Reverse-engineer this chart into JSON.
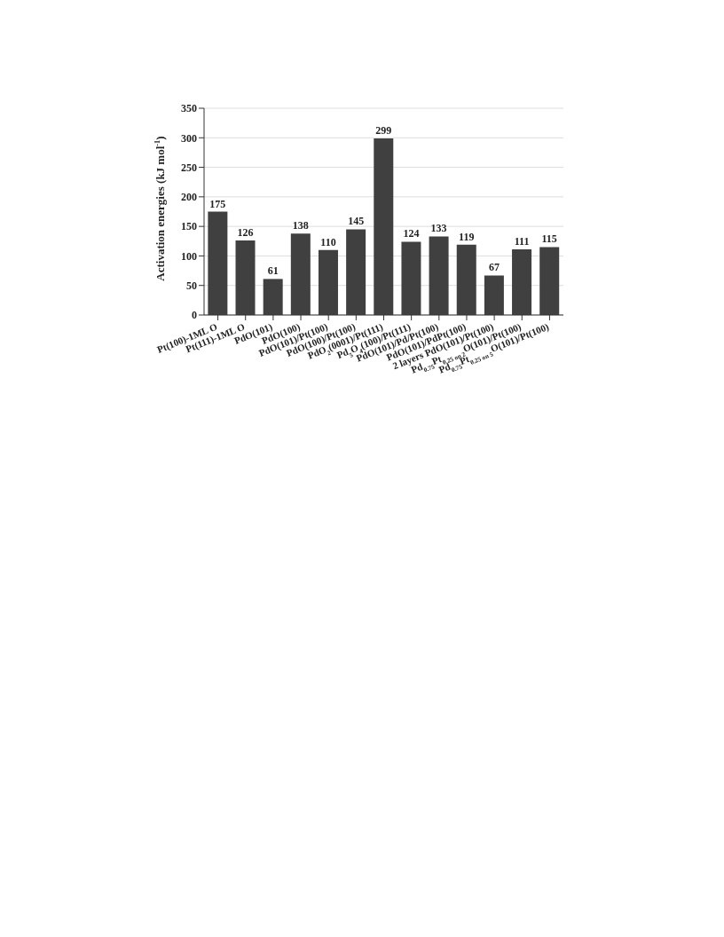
{
  "chart_data": {
    "type": "bar",
    "ylabel": "Activation energies (kJ mol$^{-1}$)",
    "categories": [
      "Pt(100)-1ML O",
      "Pt(111)-1ML O",
      "PdO(101)",
      "PdO(100)",
      "PdO(101)/Pt(100)",
      "PdO(100)/Pt(100)",
      "PdO$_{2}$(0001)/Pt(111)",
      "Pd$_{5}$O$_{4}$(100)/Pt(111)",
      "PdO(101)/Pd/Pt(100)",
      "PdO(101)/PdPt(100)",
      "2 layers PdO(101)/Pt(100)",
      "Pd$_{0.75}$Pt$_{0.25 on 2}$O(101)/Pt(100)",
      "Pd$_{0.75}$Pt$_{0.25 on 5}$O(101)/Pt(100)"
    ],
    "values": [
      175,
      126,
      61,
      138,
      110,
      145,
      299,
      124,
      133,
      119,
      67,
      111,
      115
    ],
    "color": "#404040",
    "ylim": [
      0,
      350
    ],
    "yticks": [
      0,
      50,
      100,
      150,
      200,
      250,
      300,
      350
    ],
    "grid": "y",
    "data_labels": true
  }
}
